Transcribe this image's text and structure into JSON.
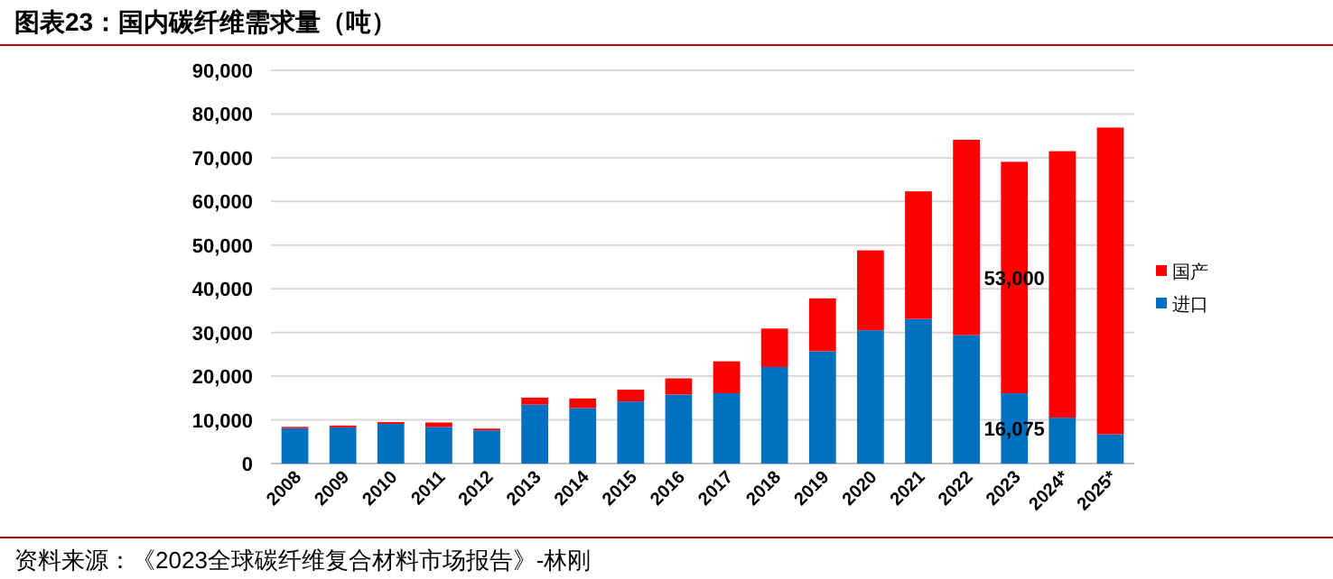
{
  "chart_data": {
    "type": "bar",
    "stacked": true,
    "title": "图表23：国内碳纤维需求量（吨）",
    "categories": [
      "2008",
      "2009",
      "2010",
      "2011",
      "2012",
      "2013",
      "2014",
      "2015",
      "2016",
      "2017",
      "2018",
      "2019",
      "2020",
      "2021",
      "2022",
      "2023",
      "2024*",
      "2025*"
    ],
    "series": [
      {
        "name": "进口",
        "color": "#0070c0",
        "values": [
          8100,
          8300,
          9100,
          8400,
          7600,
          13500,
          12700,
          14200,
          15800,
          16100,
          22100,
          25700,
          30500,
          33100,
          29400,
          16075,
          10500,
          6700
        ],
        "value_labels": [
          null,
          null,
          null,
          null,
          null,
          null,
          null,
          null,
          null,
          null,
          null,
          null,
          null,
          null,
          null,
          "16,075",
          null,
          null
        ]
      },
      {
        "name": "国产",
        "color": "#ff0000",
        "values": [
          300,
          400,
          400,
          1000,
          400,
          1600,
          2200,
          2700,
          3700,
          7300,
          8800,
          12100,
          18300,
          29200,
          44700,
          53000,
          61000,
          70200
        ],
        "value_labels": [
          null,
          null,
          null,
          null,
          null,
          null,
          null,
          null,
          null,
          null,
          null,
          null,
          null,
          null,
          null,
          "53,000",
          null,
          null
        ]
      }
    ],
    "ylim": [
      0,
      90000
    ],
    "yticks": [
      0,
      {
        "value": 10000,
        "label": "10,000"
      },
      {
        "value": 20000,
        "label": "20,000"
      },
      {
        "value": 30000,
        "label": "30,000"
      },
      {
        "value": 40000,
        "label": "40,000"
      },
      {
        "value": 50000,
        "label": "50,000"
      },
      {
        "value": 60000,
        "label": "60,000"
      },
      {
        "value": 70000,
        "label": "70,000"
      },
      {
        "value": 80000,
        "label": "80,000"
      },
      {
        "value": 90000,
        "label": "90,000"
      }
    ],
    "grid": "y",
    "legend": "right",
    "annotations": [
      "资料来源：《2023全球碳纤维复合材料市场报告》-林刚"
    ]
  }
}
